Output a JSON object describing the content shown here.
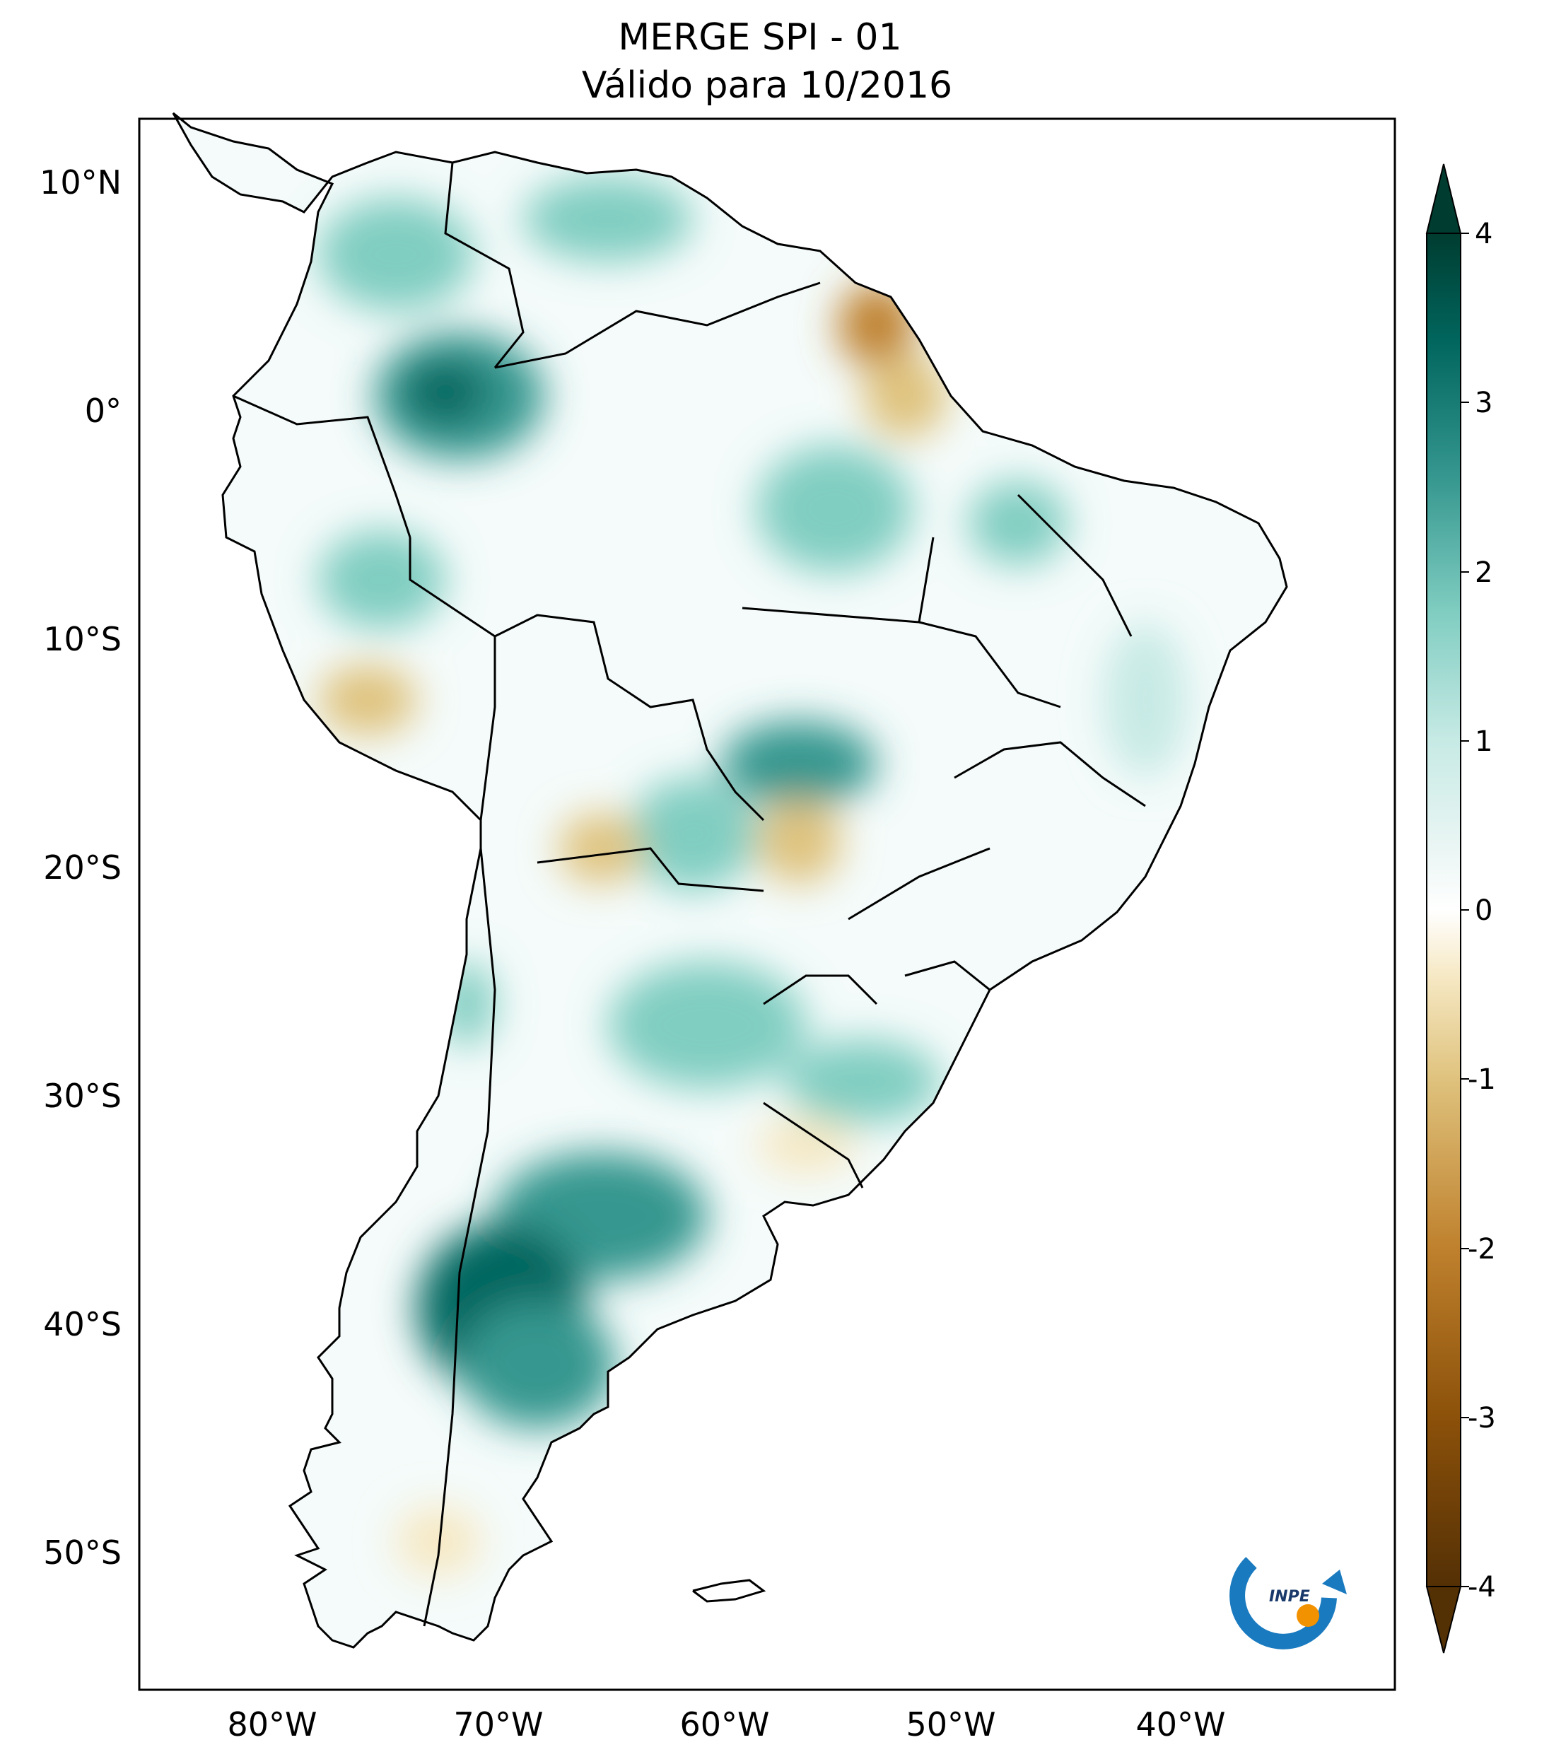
{
  "title": {
    "line1": "MERGE   SPI - 01",
    "line2": "Válido para 10/2016"
  },
  "axes": {
    "lat_labels": [
      "10°N",
      "0°",
      "10°S",
      "20°S",
      "30°S",
      "40°S",
      "50°S"
    ],
    "lon_labels": [
      "80°W",
      "70°W",
      "60°W",
      "50°W",
      "40°W"
    ]
  },
  "colorbar": {
    "ticks": [
      "4",
      "3",
      "2",
      "1",
      "0",
      "-1",
      "-2",
      "-3",
      "-4"
    ],
    "colors": {
      "dark_brown": "#543005",
      "brown": "#8c510a",
      "tan": "#bf812d",
      "light_tan": "#dfc27d",
      "cream": "#f6e8c3",
      "white": "#f5f5f5",
      "light_teal": "#c7eae5",
      "teal_mid": "#80cdc1",
      "teal": "#35978f",
      "dark_teal": "#01665e",
      "deep_teal": "#003c30"
    }
  },
  "logo": {
    "text": "INPE",
    "ring_color": "#1a7abf",
    "dot_color": "#f39200"
  },
  "icon_names": [
    "inpe-logo-icon"
  ]
}
